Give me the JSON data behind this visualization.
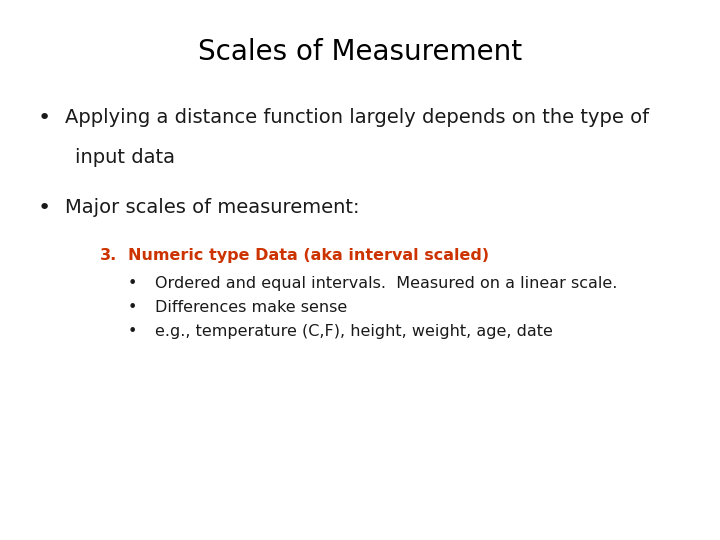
{
  "title": "Scales of Measurement",
  "title_fontsize": 20,
  "title_color": "#000000",
  "background_color": "#ffffff",
  "bullet1_line1": "Applying a distance function largely depends on the type of",
  "bullet1_line2": "input data",
  "bullet2": "Major scales of measurement:",
  "numbered_item": "3.",
  "numbered_text": "Numeric type Data (aka interval scaled)",
  "numbered_color": "#cc3300",
  "sub_bullets": [
    "Ordered and equal intervals.  Measured on a linear scale.",
    "Differences make sense",
    "e.g., temperature (C,F), height, weight, age, date"
  ],
  "main_bullet_fontsize": 14,
  "sub_bullet_fontsize": 11.5,
  "numbered_fontsize": 11.5,
  "text_color": "#1a1a1a",
  "bullet_fontsize": 16
}
